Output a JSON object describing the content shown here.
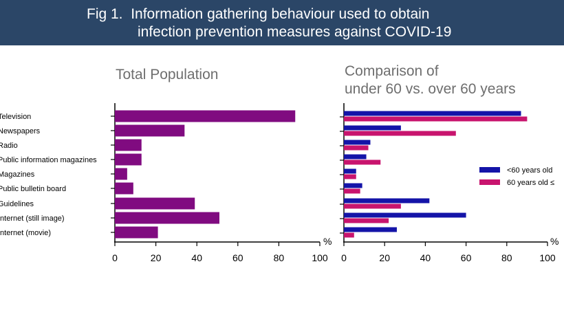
{
  "figure": {
    "title_line1": "Fig 1.  Information gathering behaviour used to obtain",
    "title_line2": "infection prevention measures against COVID-19",
    "colors": {
      "header_bg": "#2b4667",
      "total_bar": "#800b80",
      "under60": "#1414a8",
      "over60": "#c8146e"
    }
  },
  "panels": {
    "left_title": "Total Population",
    "right_title_line1": "Comparison of",
    "right_title_line2": "under 60 vs. over 60 years"
  },
  "chart_data": [
    {
      "type": "bar",
      "orientation": "horizontal",
      "title": "Total Population",
      "categories": [
        "Television",
        "Newspapers",
        "Radio",
        "Public information magazines",
        "Magazines",
        "Public bulletin board",
        "Guidelines",
        "Internet (still image)",
        "Internet (movie)"
      ],
      "values": [
        88,
        34,
        13,
        13,
        6,
        9,
        39,
        51,
        21
      ],
      "xlabel": "%",
      "xlim": [
        0,
        100
      ],
      "xticks": [
        "0",
        "20",
        "40",
        "60",
        "80",
        "100"
      ],
      "grid": false
    },
    {
      "type": "bar",
      "orientation": "horizontal",
      "title": "Comparison of under 60 vs. over 60 years",
      "categories": [
        "Television",
        "Newspapers",
        "Radio",
        "Public information magazines",
        "Magazines",
        "Public bulletin board",
        "Guidelines",
        "Internet (still image)",
        "Internet (movie)"
      ],
      "series": [
        {
          "name": "<60 years old",
          "values": [
            87,
            28,
            13,
            11,
            6,
            9,
            42,
            60,
            26
          ]
        },
        {
          "name": "60 years old ≤",
          "values": [
            90,
            55,
            12,
            18,
            6,
            8,
            28,
            22,
            5
          ]
        }
      ],
      "xlabel": "%",
      "xlim": [
        0,
        100
      ],
      "xticks": [
        "0",
        "20",
        "40",
        "60",
        "80",
        "100"
      ],
      "legend_position": "right",
      "grid": false
    }
  ]
}
